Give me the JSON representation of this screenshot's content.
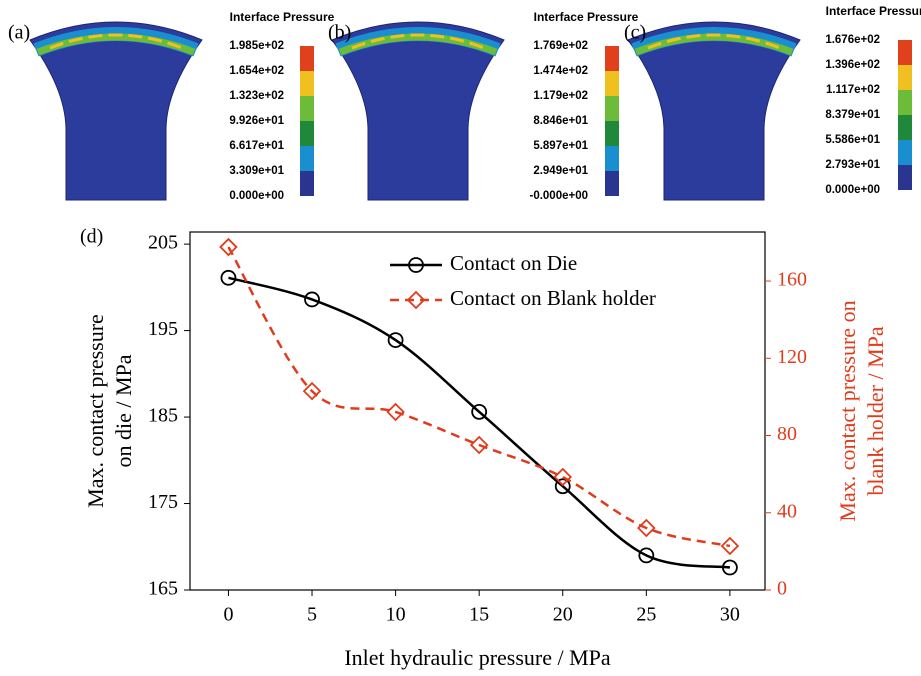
{
  "panels": [
    {
      "label": "(a)",
      "title": "Interface Pressure",
      "levels": [
        "1.985e+02",
        "1.654e+02",
        "1.323e+02",
        "9.926e+01",
        "6.617e+01",
        "3.309e+01",
        "0.000e+00"
      ]
    },
    {
      "label": "(b)",
      "title": "Interface Pressure",
      "levels": [
        "1.769e+02",
        "1.474e+02",
        "1.179e+02",
        "8.846e+01",
        "5.897e+01",
        "2.949e+01",
        "-0.000e+00"
      ]
    },
    {
      "label": "(c)",
      "title": "Interface Pressure",
      "levels": [
        "1.676e+02",
        "1.396e+02",
        "1.117e+02",
        "8.379e+01",
        "5.586e+01",
        "2.793e+01",
        "0.000e+00"
      ]
    }
  ],
  "colorbar": [
    "#e0401c",
    "#f0c020",
    "#6cbc3a",
    "#20883a",
    "#1a8fd0",
    "#2a3590"
  ],
  "chart_data": {
    "type": "line",
    "label": "(d)",
    "xlabel": "Inlet hydraulic pressure / MPa",
    "ylabel": [
      "Max. contact pressure",
      "on die / MPa"
    ],
    "y2label": [
      "Max. contact pressure on",
      "blank holder / MPa"
    ],
    "x": [
      0,
      5,
      10,
      15,
      20,
      25,
      30
    ],
    "series": [
      {
        "name": "Contact on Die",
        "color": "#000000",
        "dash": false,
        "marker": "circle",
        "values": [
          201.1,
          198.6,
          193.9,
          185.6,
          177.0,
          169.0,
          167.6
        ]
      },
      {
        "name": "Contact on Blank holder",
        "color": "#e03c1c",
        "dash": true,
        "marker": "diamond",
        "axis": "y2",
        "values": [
          177.6,
          103,
          92.2,
          75.1,
          58.5,
          32.1,
          22.8
        ]
      }
    ],
    "xlim": [
      -2.3,
      32.1
    ],
    "xticks": [
      0,
      5,
      10,
      15,
      20,
      25,
      30
    ],
    "ylim": [
      165,
      206.4
    ],
    "yticks": [
      165,
      175,
      185,
      195,
      205
    ],
    "y2lim": [
      0,
      185.4
    ],
    "y2ticks": [
      0,
      40,
      80,
      120,
      160
    ],
    "y2color": "#e03c1c",
    "legend": "upper center"
  }
}
